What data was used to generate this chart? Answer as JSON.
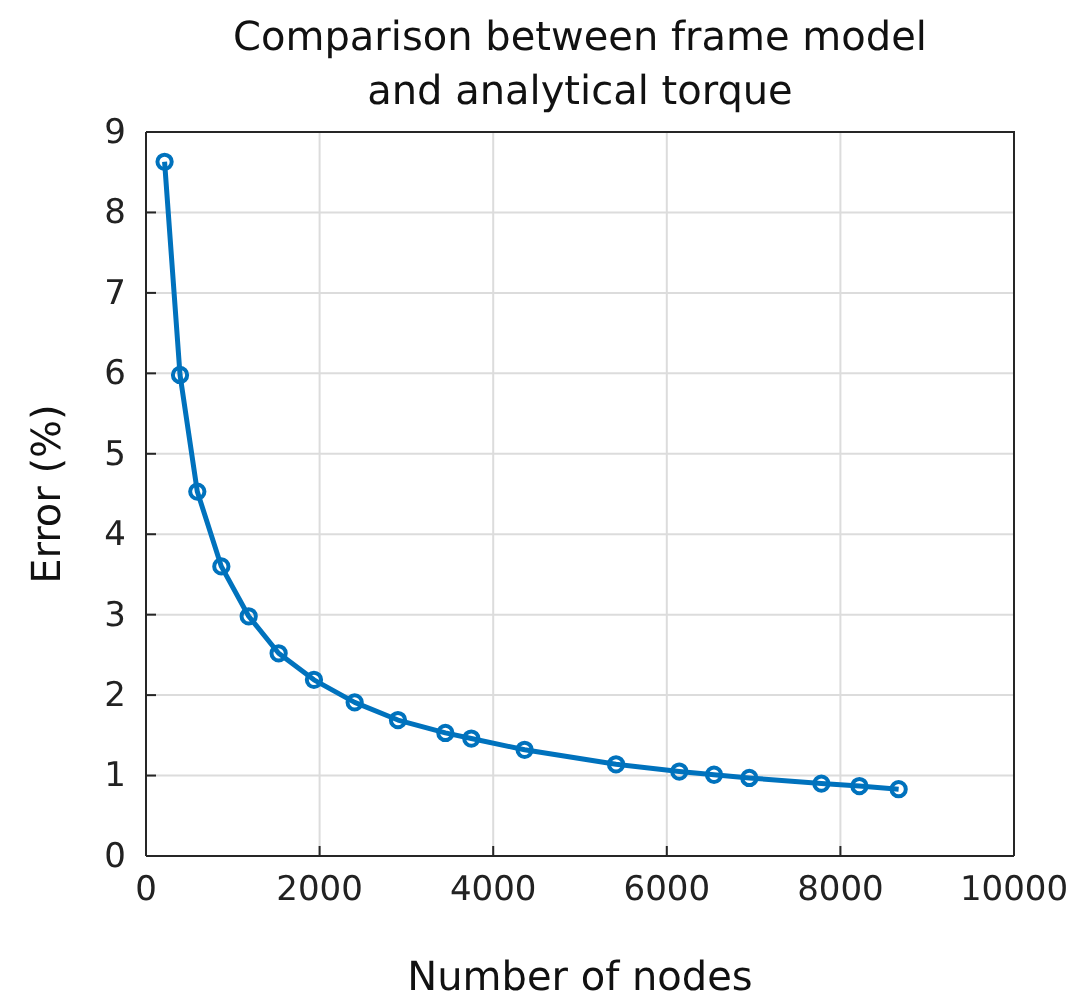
{
  "chart_data": {
    "type": "line",
    "title": "Comparison between frame model\nand analytical torque",
    "xlabel": "Number of nodes",
    "ylabel": "Error (%)",
    "x": [
      214,
      392,
      591,
      868,
      1183,
      1528,
      1935,
      2404,
      2903,
      3449,
      3748,
      4362,
      5415,
      6144,
      6544,
      6951,
      7781,
      8219,
      8671
    ],
    "series": [
      {
        "color": "#0072bd",
        "values": [
          8.63,
          5.98,
          4.53,
          3.6,
          2.98,
          2.52,
          2.19,
          1.91,
          1.69,
          1.53,
          1.46,
          1.32,
          1.14,
          1.05,
          1.01,
          0.97,
          0.9,
          0.87,
          0.83
        ]
      }
    ],
    "xlim": [
      0,
      10000
    ],
    "xticks": [
      0,
      2000,
      4000,
      6000,
      8000,
      10000
    ],
    "ylim": [
      0,
      9
    ],
    "yticks": [
      0,
      1,
      2,
      3,
      4,
      5,
      6,
      7,
      8,
      9
    ],
    "grid": true,
    "marker": "circle",
    "line_style": "solid"
  }
}
